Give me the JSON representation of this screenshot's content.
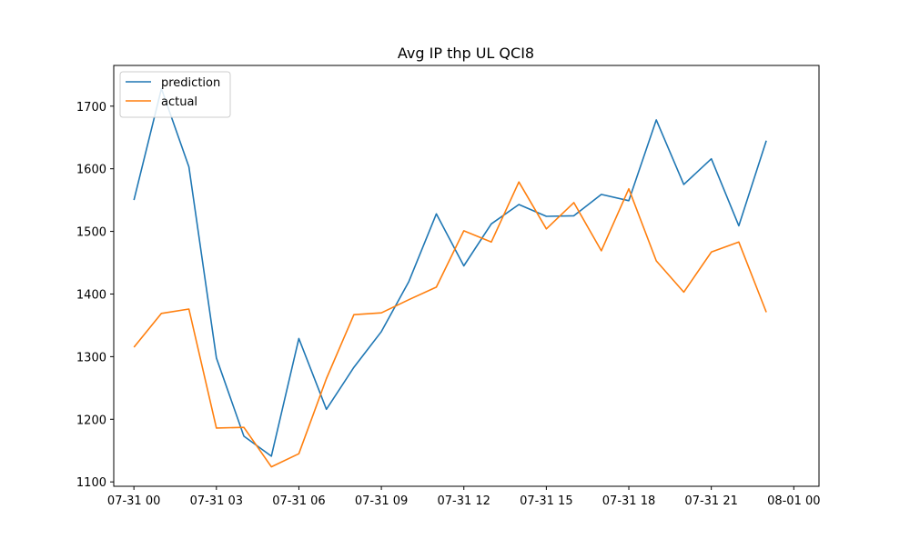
{
  "chart_data": {
    "type": "line",
    "title": "Avg IP thp UL QCI8",
    "xlabel": "",
    "ylabel": "",
    "x": [
      "07-31 00:00",
      "07-31 01:00",
      "07-31 02:00",
      "07-31 03:00",
      "07-31 04:00",
      "07-31 05:00",
      "07-31 06:00",
      "07-31 07:00",
      "07-31 08:00",
      "07-31 09:00",
      "07-31 10:00",
      "07-31 11:00",
      "07-31 12:00",
      "07-31 13:00",
      "07-31 14:00",
      "07-31 15:00",
      "07-31 16:00",
      "07-31 17:00",
      "07-31 18:00",
      "07-31 19:00",
      "07-31 20:00",
      "07-31 21:00",
      "07-31 22:00",
      "07-31 23:00"
    ],
    "xticks": [
      "07-31 00",
      "07-31 03",
      "07-31 06",
      "07-31 09",
      "07-31 12",
      "07-31 15",
      "07-31 18",
      "07-31 21",
      "08-01 00"
    ],
    "xlim": [
      "07-30 23:16",
      "08-01 00:55"
    ],
    "ylim": [
      1093,
      1765
    ],
    "yticks": [
      1100,
      1200,
      1300,
      1400,
      1500,
      1600,
      1700
    ],
    "grid": false,
    "legend_placement": "top-left",
    "series": [
      {
        "name": "prediction",
        "color": "#1f77b4",
        "values": [
          1550,
          1728,
          1603,
          1298,
          1173,
          1141,
          1329,
          1216,
          1283,
          1340,
          1420,
          1528,
          1445,
          1512,
          1543,
          1524,
          1525,
          1559,
          1549,
          1678,
          1575,
          1616,
          1509,
          1645
        ]
      },
      {
        "name": "actual",
        "color": "#ff7f0e",
        "values": [
          1315,
          1369,
          1376,
          1186,
          1187,
          1124,
          1145,
          1265,
          1367,
          1370,
          1391,
          1411,
          1501,
          1483,
          1579,
          1504,
          1546,
          1469,
          1568,
          1453,
          1403,
          1467,
          1483,
          1371
        ]
      }
    ]
  }
}
